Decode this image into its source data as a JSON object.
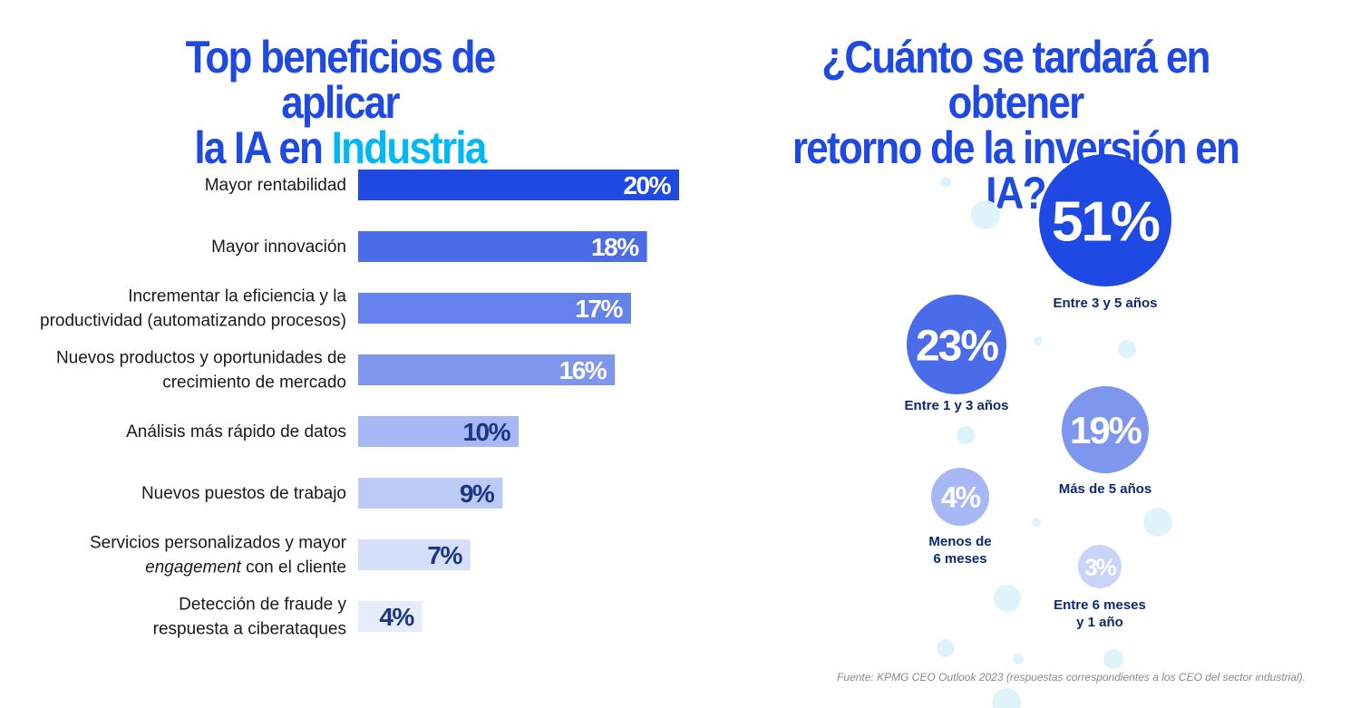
{
  "left_title": {
    "line1": "Top beneficios de aplicar",
    "line2_prefix": "la IA en ",
    "line2_highlight": "Industria"
  },
  "right_title": {
    "line1": "¿Cuánto se tardará en obtener",
    "line2": "retorno de la inversión en IA?"
  },
  "colors": {
    "title": "#1e49e2",
    "highlight": "#00b8f5",
    "dark_text": "#0b2a6f",
    "decor": "#dff3fb"
  },
  "chart_data": [
    {
      "type": "bar",
      "orientation": "horizontal",
      "categories": [
        [
          "Mayor rentabilidad"
        ],
        [
          "Mayor innovación"
        ],
        [
          "Incrementar la eficiencia y la",
          "productividad (automatizando procesos)"
        ],
        [
          "Nuevos productos y oportunidades de",
          "crecimiento de mercado"
        ],
        [
          "Análisis más rápido de datos"
        ],
        [
          "Nuevos puestos de trabajo"
        ],
        [
          [
            "Servicios personalizados y mayor"
          ],
          [
            "engagement",
            " con el cliente"
          ]
        ],
        [
          "Detección de fraude y",
          "respuesta a ciberataques"
        ]
      ],
      "values": [
        20,
        18,
        17,
        16,
        10,
        9,
        7,
        4
      ],
      "value_labels": [
        "20%",
        "18%",
        "17%",
        "16%",
        "10%",
        "9%",
        "7%",
        "4%"
      ],
      "bar_colors": [
        "#1e49e2",
        "#4a6ce8",
        "#6582ec",
        "#7f96ef",
        "#a8b8f4",
        "#bccaf6",
        "#d6dff9",
        "#e6ecfb"
      ],
      "label_colors": [
        "#ffffff",
        "#ffffff",
        "#ffffff",
        "#ffffff",
        "#1e3584",
        "#1e3584",
        "#1e3584",
        "#1e3584"
      ],
      "xlim": [
        0,
        20
      ]
    },
    {
      "type": "bubble",
      "items": [
        {
          "value": 51,
          "value_label": "51%",
          "label": [
            "Entre 3 y 5 años"
          ],
          "color": "#1e49e2"
        },
        {
          "value": 23,
          "value_label": "23%",
          "label": [
            "Entre 1 y 3 años"
          ],
          "color": "#4a6ce8"
        },
        {
          "value": 19,
          "value_label": "19%",
          "label": [
            "Más de 5 años"
          ],
          "color": "#7f96ef"
        },
        {
          "value": 4,
          "value_label": "4%",
          "label": [
            "Menos de",
            "6 meses"
          ],
          "color": "#a8b8f4"
        },
        {
          "value": 3,
          "value_label": "3%",
          "label": [
            "Entre 6 meses",
            "y 1 año"
          ],
          "color": "#c9d4f8"
        }
      ]
    }
  ],
  "source": "Fuente: KPMG CEO Outlook 2023 (respuestas correspondientes a los CEO del sector industrial)."
}
